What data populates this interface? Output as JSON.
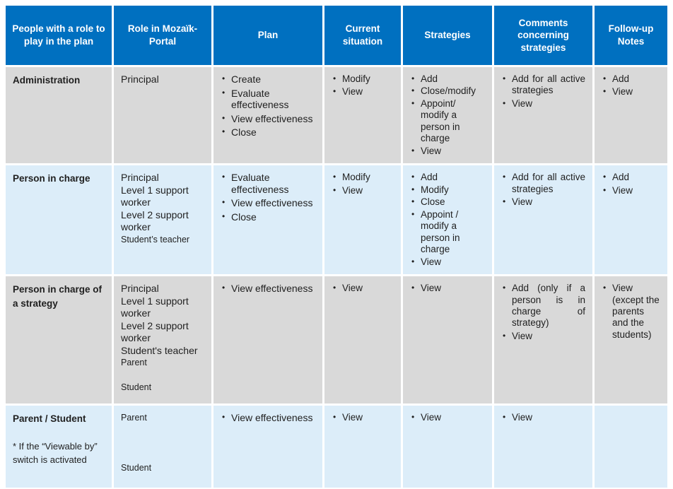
{
  "colors": {
    "header_bg": "#0070C0",
    "header_text": "#FFFFFF",
    "row_gray": "#D9D9D9",
    "row_blue": "#DCEDF9",
    "body_text": "#1F1F1F"
  },
  "header": {
    "columns": [
      "People with a role to play in the plan",
      "Role in Mozaïk-Portal",
      "Plan",
      "Current situation",
      "Strategies",
      "Comments concerning strategies",
      "Follow-up Notes"
    ]
  },
  "rows": [
    {
      "shade": "gray",
      "people": {
        "title": "Administration",
        "note": ""
      },
      "roles": [
        {
          "text": "Principal",
          "size": "md",
          "gap": "none"
        }
      ],
      "plan": [
        "Create",
        "Evaluate effectiveness",
        "View effectiveness",
        "Close"
      ],
      "current": [
        "Modify",
        "View"
      ],
      "strategies": [
        "Add",
        "Close/modify",
        "Appoint/ modify a person in charge",
        "View"
      ],
      "comments": [
        "Add for all active strategies",
        "View"
      ],
      "followup": [
        "Add",
        "View"
      ]
    },
    {
      "shade": "blue",
      "people": {
        "title": "Person in charge",
        "note": ""
      },
      "roles": [
        {
          "text": "Principal",
          "size": "md",
          "gap": "none"
        },
        {
          "text": "Level 1 support worker",
          "size": "md",
          "gap": "none"
        },
        {
          "text": "Level 2 support worker",
          "size": "md",
          "gap": "none"
        },
        {
          "text": "Student’s teacher",
          "size": "sm",
          "gap": "none"
        }
      ],
      "plan": [
        "Evaluate effectiveness",
        "View effectiveness",
        "Close"
      ],
      "current": [
        "Modify",
        "View"
      ],
      "strategies": [
        "Add",
        "Modify",
        "Close",
        "Appoint / modify a person in charge",
        "View"
      ],
      "comments": [
        "Add for all active strategies",
        "View"
      ],
      "followup": [
        "Add",
        "View"
      ]
    },
    {
      "shade": "gray",
      "people": {
        "title": "Person in charge of a strategy",
        "note": ""
      },
      "roles": [
        {
          "text": "Principal",
          "size": "md",
          "gap": "none"
        },
        {
          "text": "Level 1 support worker",
          "size": "md",
          "gap": "none"
        },
        {
          "text": "Level 2 support worker",
          "size": "md",
          "gap": "none"
        },
        {
          "text": "Student's teacher",
          "size": "md",
          "gap": "none"
        },
        {
          "text": "Parent",
          "size": "sm",
          "gap": "none"
        },
        {
          "text": "Student",
          "size": "sm",
          "gap": "small"
        }
      ],
      "plan": [
        "View effectiveness"
      ],
      "current": [
        "View"
      ],
      "strategies": [
        "View"
      ],
      "comments": [
        "Add (only if a person is in charge of strategy)",
        "View"
      ],
      "followup": [
        "View (except the parents and the students)"
      ]
    },
    {
      "shade": "blue",
      "people": {
        "title": "Parent / Student",
        "note": "* If the “Viewable by” switch is activated"
      },
      "roles": [
        {
          "text": "Parent",
          "size": "sm",
          "gap": "none"
        },
        {
          "text": "Student",
          "size": "sm",
          "gap": "large"
        }
      ],
      "plan": [
        "View effectiveness"
      ],
      "current": [
        "View"
      ],
      "strategies": [
        "View"
      ],
      "comments": [
        "View"
      ],
      "followup": []
    }
  ]
}
